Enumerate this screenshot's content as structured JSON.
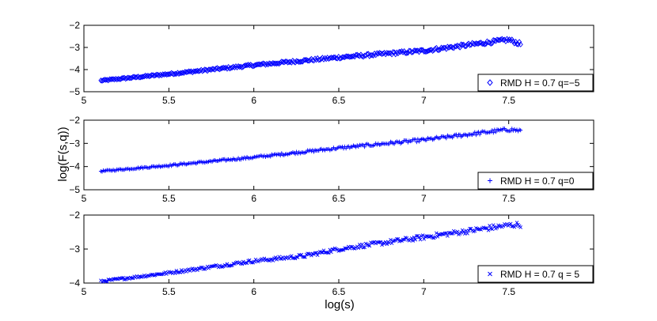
{
  "figure": {
    "xlabel": "log(s)",
    "ylabel": "log(F(s,q))"
  },
  "chart_data": [
    {
      "type": "scatter",
      "marker": "diamond",
      "color": "#0000ff",
      "xlim": [
        5,
        8
      ],
      "ylim": [
        -5,
        -2
      ],
      "xticks": [
        "5",
        "5.5",
        "6",
        "6.5",
        "7",
        "7.5"
      ],
      "yticks": [
        "-2",
        "-3",
        "-4",
        "-5"
      ],
      "legend": "RMD H = 0.7 q=−5",
      "legend_position": "bottom-right",
      "series": [
        {
          "name": "RMD H = 0.7 q=−5",
          "x_range": [
            5.1,
            7.57
          ],
          "points": [
            [
              5.1,
              -4.5
            ],
            [
              5.5,
              -4.2
            ],
            [
              6.0,
              -3.8
            ],
            [
              6.5,
              -3.45
            ],
            [
              7.0,
              -3.15
            ],
            [
              7.5,
              -2.65
            ],
            [
              7.57,
              -2.85
            ]
          ]
        }
      ]
    },
    {
      "type": "scatter",
      "marker": "plus",
      "color": "#0000ff",
      "xlim": [
        5,
        8
      ],
      "ylim": [
        -5,
        -2
      ],
      "xticks": [
        "5",
        "5.5",
        "6",
        "6.5",
        "7",
        "7.5"
      ],
      "yticks": [
        "-2",
        "-3",
        "-4",
        "-5"
      ],
      "legend": "RMD H = 0.7 q=0",
      "legend_position": "bottom-right",
      "series": [
        {
          "name": "RMD H = 0.7 q=0",
          "x_range": [
            5.1,
            7.57
          ],
          "points": [
            [
              5.1,
              -4.2
            ],
            [
              5.5,
              -3.95
            ],
            [
              6.0,
              -3.6
            ],
            [
              6.5,
              -3.2
            ],
            [
              7.0,
              -2.85
            ],
            [
              7.5,
              -2.4
            ],
            [
              7.57,
              -2.45
            ]
          ]
        }
      ]
    },
    {
      "type": "scatter",
      "marker": "x",
      "color": "#0000ff",
      "xlim": [
        5,
        8
      ],
      "ylim": [
        -4,
        -2
      ],
      "xticks": [
        "5",
        "5.5",
        "6",
        "6.5",
        "7",
        "7.5"
      ],
      "yticks": [
        "-2",
        "-3",
        "-4"
      ],
      "legend": "RMD H = 0.7 q = 5",
      "legend_position": "bottom-right",
      "series": [
        {
          "name": "RMD H = 0.7 q = 5",
          "x_range": [
            5.1,
            7.57
          ],
          "points": [
            [
              5.1,
              -3.95
            ],
            [
              5.5,
              -3.7
            ],
            [
              6.0,
              -3.35
            ],
            [
              6.3,
              -3.2
            ],
            [
              6.5,
              -3.0
            ],
            [
              7.0,
              -2.65
            ],
            [
              7.5,
              -2.3
            ],
            [
              7.57,
              -2.28
            ]
          ]
        }
      ]
    }
  ]
}
